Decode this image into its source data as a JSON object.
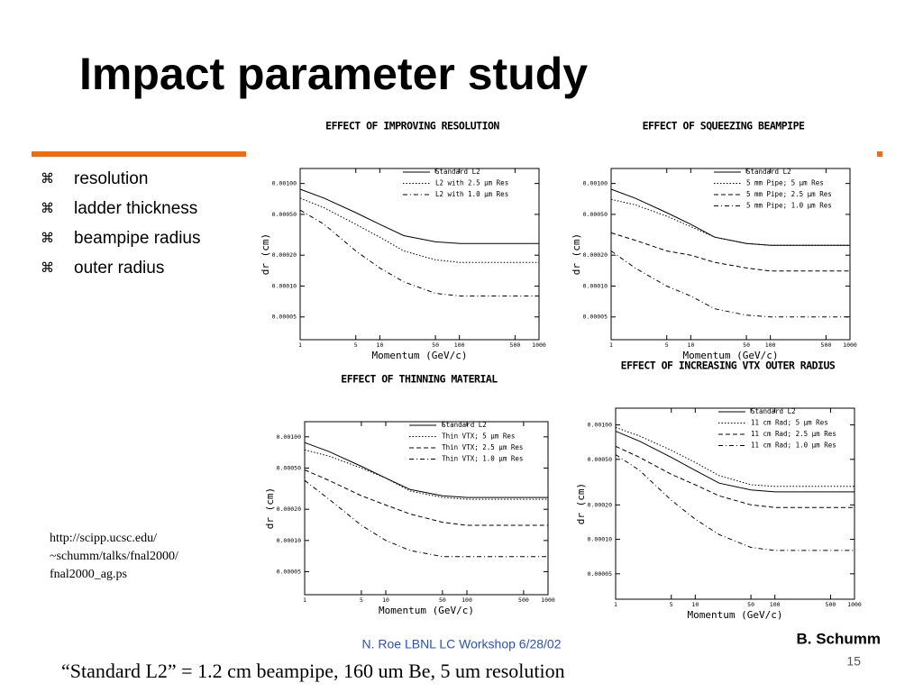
{
  "title": "Impact parameter study",
  "bullet": "⌘",
  "bullets": [
    "resolution",
    "ladder thickness",
    "beampipe radius",
    "outer radius"
  ],
  "link_lines": [
    "http://scipp.ucsc.edu/",
    "~schumm/talks/fnal2000/",
    "fnal2000_ag.ps"
  ],
  "footer": "N. Roe LBNL LC Workshop 6/28/02",
  "author": "B. Schumm",
  "page_number": "15",
  "caption": "“Standard L2” = 1.2 cm beampipe, 160 um Be, 5 um resolution",
  "chart_data": [
    {
      "type": "line",
      "title": "EFFECT OF IMPROVING RESOLUTION",
      "x_label": "Momentum (GeV/c)",
      "y_label": "dr (cm)",
      "log_x": true,
      "log_y": true,
      "x": [
        1,
        2,
        5,
        10,
        20,
        50,
        100,
        200,
        500,
        1000
      ],
      "xlim": [
        1,
        1000
      ],
      "xticks": [
        1,
        5,
        10,
        50,
        100,
        500,
        1000
      ],
      "ylim": [
        3e-05,
        0.0014
      ],
      "yticks": [
        {
          "value": 5e-05,
          "label": "0.00005"
        },
        {
          "value": 0.0001,
          "label": "0.00010"
        },
        {
          "value": 0.0002,
          "label": "0.00020"
        },
        {
          "value": 0.0005,
          "label": "0.00050"
        },
        {
          "value": 0.001,
          "label": "0.00100"
        }
      ],
      "series": [
        {
          "name": "Standard L2",
          "color": "#000000",
          "dash": "none",
          "values": [
            0.00088,
            0.00072,
            0.00052,
            0.0004,
            0.00031,
            0.00027,
            0.00026,
            0.00026,
            0.00026,
            0.00026
          ]
        },
        {
          "name": "L2 with 2.5 μm Res",
          "color": "#000000",
          "dash": "1.5 2",
          "values": [
            0.00072,
            0.00058,
            0.0004,
            0.0003,
            0.00022,
            0.00018,
            0.00017,
            0.00017,
            0.00017,
            0.00017
          ]
        },
        {
          "name": "L2 with 1.0 μm Res",
          "color": "#000000",
          "dash": "5 3 1 3",
          "values": [
            0.00055,
            0.0004,
            0.00022,
            0.00015,
            0.00011,
            8.5e-05,
            8e-05,
            8e-05,
            8e-05,
            8e-05
          ]
        }
      ]
    },
    {
      "type": "line",
      "title": "EFFECT OF SQUEEZING BEAMPIPE",
      "x_label": "Momentum (GeV/c)",
      "y_label": "dr (cm)",
      "log_x": true,
      "log_y": true,
      "x": [
        1,
        2,
        5,
        10,
        20,
        50,
        100,
        200,
        500,
        1000
      ],
      "xlim": [
        1,
        1000
      ],
      "xticks": [
        1,
        5,
        10,
        50,
        100,
        500,
        1000
      ],
      "ylim": [
        3e-05,
        0.0014
      ],
      "yticks": [
        {
          "value": 5e-05,
          "label": "0.00005"
        },
        {
          "value": 0.0001,
          "label": "0.00010"
        },
        {
          "value": 0.0002,
          "label": "0.00020"
        },
        {
          "value": 0.0005,
          "label": "0.00050"
        },
        {
          "value": 0.001,
          "label": "0.00100"
        }
      ],
      "series": [
        {
          "name": "Standard L2",
          "color": "#000000",
          "dash": "none",
          "values": [
            0.00088,
            0.00072,
            0.00052,
            0.0004,
            0.0003,
            0.00026,
            0.00025,
            0.00025,
            0.00025,
            0.00025
          ]
        },
        {
          "name": "5 mm Pipe; 5 μm Res",
          "color": "#000000",
          "dash": "1.5 2",
          "values": [
            0.0007,
            0.00062,
            0.00048,
            0.00038,
            0.0003,
            0.00026,
            0.00025,
            0.00025,
            0.00025,
            0.00025
          ]
        },
        {
          "name": "5 mm Pipe; 2.5 μm Res",
          "color": "#000000",
          "dash": "5 3",
          "values": [
            0.00033,
            0.00028,
            0.00022,
            0.0002,
            0.00017,
            0.00015,
            0.00014,
            0.00014,
            0.00014,
            0.00014
          ]
        },
        {
          "name": "5 mm Pipe; 1.0 μm Res",
          "color": "#000000",
          "dash": "5 3 1 3",
          "values": [
            0.00022,
            0.00015,
            0.0001,
            8e-05,
            6e-05,
            5.2e-05,
            5e-05,
            5e-05,
            5e-05,
            5e-05
          ]
        }
      ]
    },
    {
      "type": "line",
      "title": "EFFECT OF THINNING MATERIAL",
      "x_label": "Momentum (GeV/c)",
      "y_label": "dr (cm)",
      "log_x": true,
      "log_y": true,
      "x": [
        1,
        2,
        5,
        10,
        20,
        50,
        100,
        200,
        500,
        1000
      ],
      "xlim": [
        1,
        1000
      ],
      "xticks": [
        1,
        5,
        10,
        50,
        100,
        500,
        1000
      ],
      "ylim": [
        3e-05,
        0.0014
      ],
      "yticks": [
        {
          "value": 5e-05,
          "label": "0.00005"
        },
        {
          "value": 0.0001,
          "label": "0.00010"
        },
        {
          "value": 0.0002,
          "label": "0.00020"
        },
        {
          "value": 0.0005,
          "label": "0.00050"
        },
        {
          "value": 0.001,
          "label": "0.00100"
        }
      ],
      "series": [
        {
          "name": "Standard L2",
          "color": "#000000",
          "dash": "none",
          "values": [
            0.00088,
            0.00072,
            0.00052,
            0.0004,
            0.00031,
            0.00027,
            0.00026,
            0.00026,
            0.00026,
            0.00026
          ]
        },
        {
          "name": "Thin VTX; 5 μm Res",
          "color": "#000000",
          "dash": "1.5 2",
          "values": [
            0.00075,
            0.00065,
            0.0005,
            0.0004,
            0.0003,
            0.00026,
            0.00025,
            0.00025,
            0.00025,
            0.00025
          ]
        },
        {
          "name": "Thin VTX; 2.5 μm Res",
          "color": "#000000",
          "dash": "5 3",
          "values": [
            0.00048,
            0.00038,
            0.00027,
            0.00022,
            0.00018,
            0.00015,
            0.00014,
            0.00014,
            0.00014,
            0.00014
          ]
        },
        {
          "name": "Thin VTX; 1.0 μm Res",
          "color": "#000000",
          "dash": "5 3 1 3",
          "values": [
            0.00038,
            0.00025,
            0.00014,
            0.0001,
            8e-05,
            7e-05,
            7e-05,
            7e-05,
            7e-05,
            7e-05
          ]
        }
      ]
    },
    {
      "type": "line",
      "title": "EFFECT OF INCREASING VTX OUTER RADIUS",
      "x_label": "Momentum (GeV/c)",
      "y_label": "dr (cm)",
      "log_x": true,
      "log_y": true,
      "x": [
        1,
        2,
        5,
        10,
        20,
        50,
        100,
        200,
        500,
        1000
      ],
      "xlim": [
        1,
        1000
      ],
      "xticks": [
        1,
        5,
        10,
        50,
        100,
        500,
        1000
      ],
      "ylim": [
        3e-05,
        0.0014
      ],
      "yticks": [
        {
          "value": 5e-05,
          "label": "0.00005"
        },
        {
          "value": 0.0001,
          "label": "0.00010"
        },
        {
          "value": 0.0002,
          "label": "0.00020"
        },
        {
          "value": 0.0005,
          "label": "0.00050"
        },
        {
          "value": 0.001,
          "label": "0.00100"
        }
      ],
      "series": [
        {
          "name": "Standard L2",
          "color": "#000000",
          "dash": "none",
          "values": [
            0.00088,
            0.00072,
            0.00052,
            0.0004,
            0.00031,
            0.00027,
            0.00026,
            0.00026,
            0.00026,
            0.00026
          ]
        },
        {
          "name": "11 cm Rad; 5 μm Res",
          "color": "#000000",
          "dash": "1.5 2",
          "values": [
            0.00095,
            0.0008,
            0.0006,
            0.00047,
            0.00036,
            0.0003,
            0.00029,
            0.00029,
            0.00029,
            0.00029
          ]
        },
        {
          "name": "11 cm Rad; 2.5 μm Res",
          "color": "#000000",
          "dash": "5 3",
          "values": [
            0.00065,
            0.00052,
            0.00037,
            0.0003,
            0.00024,
            0.0002,
            0.00019,
            0.00019,
            0.00019,
            0.00019
          ]
        },
        {
          "name": "11 cm Rad; 1.0 μm Res",
          "color": "#000000",
          "dash": "5 3 1 3",
          "values": [
            0.00055,
            0.0004,
            0.00022,
            0.00015,
            0.00011,
            8.5e-05,
            8e-05,
            8e-05,
            8e-05,
            8e-05
          ]
        }
      ]
    }
  ]
}
